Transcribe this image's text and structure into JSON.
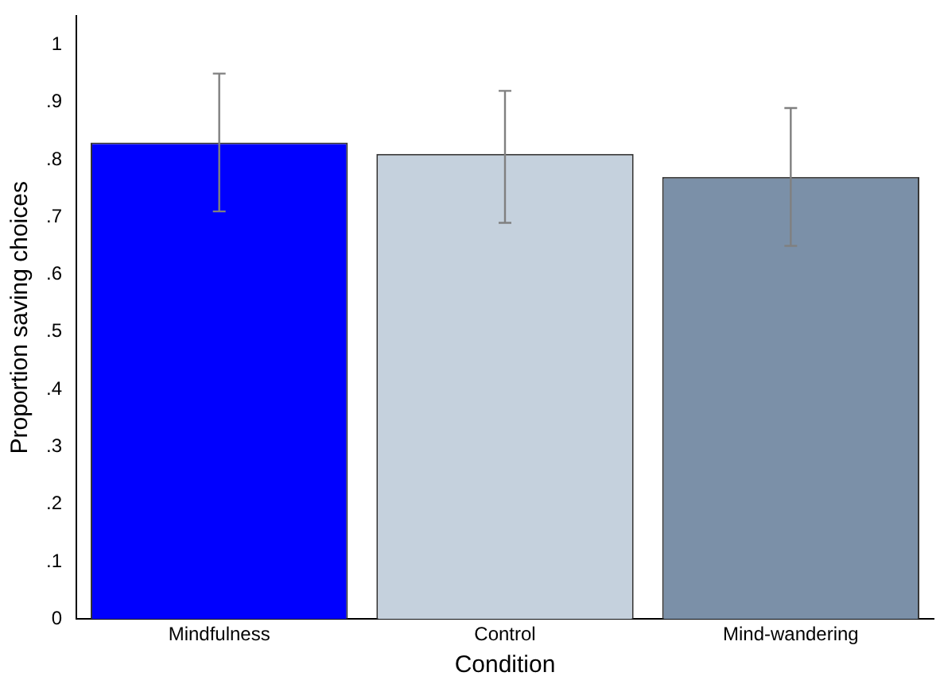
{
  "chart_data": {
    "type": "bar",
    "xlabel": "Condition",
    "ylabel": "Proportion saving choices",
    "categories": [
      "Mindfulness",
      "Control",
      "Mind-wandering"
    ],
    "values": [
      0.83,
      0.81,
      0.77
    ],
    "colors": [
      "#0000ff",
      "#c5d1dd",
      "#7b90a8"
    ],
    "errors": [
      [
        0.71,
        0.95
      ],
      [
        0.69,
        0.92
      ],
      [
        0.65,
        0.89
      ]
    ],
    "ylim": [
      0,
      1.05
    ],
    "yticks": [
      0,
      {
        "value": 0.1,
        "label": ".1"
      },
      {
        "value": 0.2,
        "label": ".2"
      },
      {
        "value": 0.3,
        "label": ".3"
      },
      {
        "value": 0.4,
        "label": ".4"
      },
      {
        "value": 0.5,
        "label": ".5"
      },
      {
        "value": 0.6,
        "label": ".6"
      },
      {
        "value": 0.7,
        "label": ".7"
      },
      {
        "value": 0.8,
        "label": ".8"
      },
      {
        "value": 0.9,
        "label": ".9"
      },
      1
    ],
    "grid": false,
    "legend": false
  }
}
